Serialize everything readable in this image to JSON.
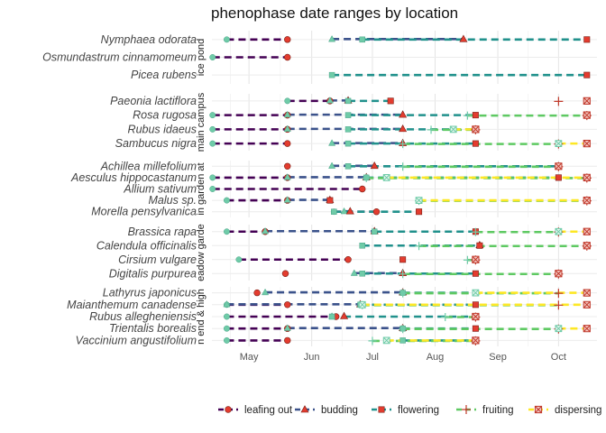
{
  "chart_data": {
    "type": "line",
    "title": "phenophase date ranges by location",
    "xlabel": "",
    "ylabel": "",
    "grid": true,
    "legend_position": "bottom",
    "x_range": [
      "2023-04-10",
      "2023-10-20"
    ],
    "x_ticks": [
      {
        "date": "2023-05-01",
        "label": "May"
      },
      {
        "date": "2023-06-01",
        "label": "Jun"
      },
      {
        "date": "2023-07-01",
        "label": "Jul"
      },
      {
        "date": "2023-08-01",
        "label": "Aug"
      },
      {
        "date": "2023-09-01",
        "label": "Sep"
      },
      {
        "date": "2023-10-01",
        "label": "Oct"
      }
    ],
    "phenophases": [
      {
        "key": "leafing",
        "name": "leafing out",
        "color": "#440154",
        "marker": "circle"
      },
      {
        "key": "budding",
        "name": "budding",
        "color": "#3b528b",
        "marker": "triangle"
      },
      {
        "key": "flowering",
        "name": "flowering",
        "color": "#21918c",
        "marker": "square"
      },
      {
        "key": "fruiting",
        "name": "fruiting",
        "color": "#5ec962",
        "marker": "plus"
      },
      {
        "key": "dispersing",
        "name": "dispersing",
        "color": "#fde725",
        "marker": "boxx"
      }
    ],
    "facets": [
      {
        "label": "ice pond",
        "species": [
          {
            "name": "Nymphaea odorata",
            "ranges": [
              {
                "phase": "leafing",
                "start": "2023-04-20",
                "end": "2023-05-20"
              },
              {
                "phase": "budding",
                "start": "2023-06-11",
                "end": "2023-08-15"
              },
              {
                "phase": "flowering",
                "start": "2023-06-26",
                "end": "2023-10-15"
              }
            ]
          },
          {
            "name": "Osmundastrum cinnamomeum",
            "ranges": [
              {
                "phase": "leafing",
                "start": "2023-04-13",
                "end": "2023-05-20"
              }
            ]
          },
          {
            "name": "Picea rubens",
            "ranges": [
              {
                "phase": "flowering",
                "start": "2023-06-11",
                "end": "2023-10-15"
              }
            ]
          }
        ]
      },
      {
        "label": "main campus",
        "species": [
          {
            "name": "Paeonia lactiflora",
            "ranges": [
              {
                "phase": "leafing",
                "start": "2023-05-20",
                "end": "2023-06-10"
              },
              {
                "phase": "budding",
                "start": "2023-06-10",
                "end": "2023-06-19"
              },
              {
                "phase": "flowering",
                "start": "2023-06-19",
                "end": "2023-07-10"
              },
              {
                "phase": "fruiting",
                "start": "2023-10-01",
                "end": "2023-10-01"
              },
              {
                "phase": "dispersing",
                "start": "2023-10-15",
                "end": "2023-10-15"
              }
            ]
          },
          {
            "name": "Rosa rugosa",
            "ranges": [
              {
                "phase": "leafing",
                "start": "2023-04-13",
                "end": "2023-05-20"
              },
              {
                "phase": "budding",
                "start": "2023-05-20",
                "end": "2023-07-16"
              },
              {
                "phase": "flowering",
                "start": "2023-06-19",
                "end": "2023-08-21"
              },
              {
                "phase": "fruiting",
                "start": "2023-08-17",
                "end": "2023-10-15"
              },
              {
                "phase": "dispersing",
                "start": "2023-10-15",
                "end": "2023-10-15"
              }
            ]
          },
          {
            "name": "Rubus idaeus",
            "ranges": [
              {
                "phase": "leafing",
                "start": "2023-04-13",
                "end": "2023-05-20"
              },
              {
                "phase": "budding",
                "start": "2023-05-20",
                "end": "2023-07-16"
              },
              {
                "phase": "flowering",
                "start": "2023-06-19",
                "end": "2023-08-21"
              },
              {
                "phase": "fruiting",
                "start": "2023-07-30",
                "end": "2023-08-21"
              },
              {
                "phase": "dispersing",
                "start": "2023-08-10",
                "end": "2023-08-21"
              }
            ]
          },
          {
            "name": "Sambucus nigra",
            "ranges": [
              {
                "phase": "leafing",
                "start": "2023-04-13",
                "end": "2023-05-20"
              },
              {
                "phase": "budding",
                "start": "2023-06-11",
                "end": "2023-07-16"
              },
              {
                "phase": "flowering",
                "start": "2023-06-19",
                "end": "2023-08-21"
              },
              {
                "phase": "fruiting",
                "start": "2023-07-16",
                "end": "2023-10-01"
              },
              {
                "phase": "dispersing",
                "start": "2023-10-01",
                "end": "2023-10-15"
              }
            ]
          }
        ]
      },
      {
        "label": "in garden at",
        "species": [
          {
            "name": "Achillea millefolium",
            "ranges": [
              {
                "phase": "leafing",
                "start": "2023-05-20",
                "end": "2023-05-20"
              },
              {
                "phase": "budding",
                "start": "2023-06-11",
                "end": "2023-07-02"
              },
              {
                "phase": "flowering",
                "start": "2023-06-19",
                "end": "2023-10-01"
              },
              {
                "phase": "fruiting",
                "start": "2023-07-16",
                "end": "2023-10-01"
              },
              {
                "phase": "dispersing",
                "start": "2023-10-01",
                "end": "2023-10-01"
              }
            ]
          },
          {
            "name": "Aesculus hippocastanum",
            "ranges": [
              {
                "phase": "leafing",
                "start": "2023-04-13",
                "end": "2023-05-20"
              },
              {
                "phase": "budding",
                "start": "2023-05-20",
                "end": "2023-06-28"
              },
              {
                "phase": "flowering",
                "start": "2023-06-28",
                "end": "2023-10-01"
              },
              {
                "phase": "fruiting",
                "start": "2023-06-28",
                "end": "2023-10-15"
              },
              {
                "phase": "dispersing",
                "start": "2023-07-08",
                "end": "2023-10-15"
              }
            ]
          },
          {
            "name": "Allium sativum",
            "ranges": [
              {
                "phase": "leafing",
                "start": "2023-04-13",
                "end": "2023-06-26"
              }
            ]
          },
          {
            "name": "Malus sp.",
            "ranges": [
              {
                "phase": "leafing",
                "start": "2023-04-20",
                "end": "2023-05-20"
              },
              {
                "phase": "budding",
                "start": "2023-05-20",
                "end": "2023-06-10"
              },
              {
                "phase": "flowering",
                "start": "2023-06-10",
                "end": "2023-06-10"
              },
              {
                "phase": "fruiting",
                "start": "2023-07-24",
                "end": "2023-10-15"
              },
              {
                "phase": "dispersing",
                "start": "2023-07-24",
                "end": "2023-10-15"
              }
            ]
          },
          {
            "name": "Morella pensylvanica",
            "ranges": [
              {
                "phase": "leafing",
                "start": "2023-06-12",
                "end": "2023-07-03"
              },
              {
                "phase": "budding",
                "start": "2023-06-17",
                "end": "2023-06-20"
              },
              {
                "phase": "flowering",
                "start": "2023-06-12",
                "end": "2023-07-24"
              }
            ]
          }
        ]
      },
      {
        "label": "eadow garde",
        "species": [
          {
            "name": "Brassica rapa",
            "ranges": [
              {
                "phase": "leafing",
                "start": "2023-04-20",
                "end": "2023-05-09"
              },
              {
                "phase": "budding",
                "start": "2023-05-09",
                "end": "2023-07-02"
              },
              {
                "phase": "flowering",
                "start": "2023-07-02",
                "end": "2023-08-21"
              },
              {
                "phase": "fruiting",
                "start": "2023-08-21",
                "end": "2023-10-01"
              },
              {
                "phase": "dispersing",
                "start": "2023-10-01",
                "end": "2023-10-15"
              }
            ]
          },
          {
            "name": "Calendula officinalis",
            "ranges": [
              {
                "phase": "flowering",
                "start": "2023-06-26",
                "end": "2023-08-23"
              },
              {
                "phase": "budding",
                "start": "2023-08-23",
                "end": "2023-08-23"
              },
              {
                "phase": "fruiting",
                "start": "2023-07-24",
                "end": "2023-10-15"
              },
              {
                "phase": "dispersing",
                "start": "2023-10-15",
                "end": "2023-10-15"
              }
            ]
          },
          {
            "name": "Cirsium vulgare",
            "ranges": [
              {
                "phase": "leafing",
                "start": "2023-04-26",
                "end": "2023-06-19"
              },
              {
                "phase": "flowering",
                "start": "2023-07-16",
                "end": "2023-07-16"
              },
              {
                "phase": "fruiting",
                "start": "2023-08-17",
                "end": "2023-08-21"
              },
              {
                "phase": "dispersing",
                "start": "2023-08-21",
                "end": "2023-08-21"
              }
            ]
          },
          {
            "name": "Digitalis purpurea",
            "ranges": [
              {
                "phase": "leafing",
                "start": "2023-05-19",
                "end": "2023-05-19"
              },
              {
                "phase": "budding",
                "start": "2023-06-22",
                "end": "2023-07-16"
              },
              {
                "phase": "flowering",
                "start": "2023-06-26",
                "end": "2023-08-21"
              },
              {
                "phase": "fruiting",
                "start": "2023-07-16",
                "end": "2023-10-01"
              },
              {
                "phase": "dispersing",
                "start": "2023-10-01",
                "end": "2023-10-01"
              }
            ]
          }
        ]
      },
      {
        "label": "n end & high",
        "species": [
          {
            "name": "Lathyrus japonicus",
            "ranges": [
              {
                "phase": "leafing",
                "start": "2023-05-05",
                "end": "2023-05-05"
              },
              {
                "phase": "budding",
                "start": "2023-05-09",
                "end": "2023-07-16"
              },
              {
                "phase": "flowering",
                "start": "2023-07-16",
                "end": "2023-08-21"
              },
              {
                "phase": "fruiting",
                "start": "2023-07-16",
                "end": "2023-10-01"
              },
              {
                "phase": "dispersing",
                "start": "2023-08-21",
                "end": "2023-10-15"
              }
            ]
          },
          {
            "name": "Maianthemum canadense",
            "ranges": [
              {
                "phase": "leafing",
                "start": "2023-04-20",
                "end": "2023-05-20"
              },
              {
                "phase": "budding",
                "start": "2023-04-20",
                "end": "2023-06-25"
              },
              {
                "phase": "flowering",
                "start": "2023-06-25",
                "end": "2023-08-21"
              },
              {
                "phase": "fruiting",
                "start": "2023-06-26",
                "end": "2023-10-01"
              },
              {
                "phase": "dispersing",
                "start": "2023-06-26",
                "end": "2023-10-15"
              }
            ]
          },
          {
            "name": "Rubus allegheniensis",
            "ranges": [
              {
                "phase": "leafing",
                "start": "2023-04-20",
                "end": "2023-06-13"
              },
              {
                "phase": "budding",
                "start": "2023-06-11",
                "end": "2023-06-17"
              },
              {
                "phase": "flowering",
                "start": "2023-06-11",
                "end": "2023-08-21"
              },
              {
                "phase": "fruiting",
                "start": "2023-08-06",
                "end": "2023-08-21"
              },
              {
                "phase": "dispersing",
                "start": "2023-08-21",
                "end": "2023-08-21"
              }
            ]
          },
          {
            "name": "Trientalis borealis",
            "ranges": [
              {
                "phase": "leafing",
                "start": "2023-04-20",
                "end": "2023-05-20"
              },
              {
                "phase": "budding",
                "start": "2023-05-20",
                "end": "2023-07-16"
              },
              {
                "phase": "flowering",
                "start": "2023-07-16",
                "end": "2023-08-21"
              },
              {
                "phase": "fruiting",
                "start": "2023-07-16",
                "end": "2023-10-01"
              },
              {
                "phase": "dispersing",
                "start": "2023-10-01",
                "end": "2023-10-15"
              }
            ]
          },
          {
            "name": "Vaccinium angustifolium",
            "ranges": [
              {
                "phase": "leafing",
                "start": "2023-04-20",
                "end": "2023-05-20"
              },
              {
                "phase": "flowering",
                "start": "2023-07-16",
                "end": "2023-08-21"
              },
              {
                "phase": "fruiting",
                "start": "2023-07-01",
                "end": "2023-08-21"
              },
              {
                "phase": "dispersing",
                "start": "2023-07-08",
                "end": "2023-08-21"
              }
            ]
          }
        ]
      }
    ]
  }
}
